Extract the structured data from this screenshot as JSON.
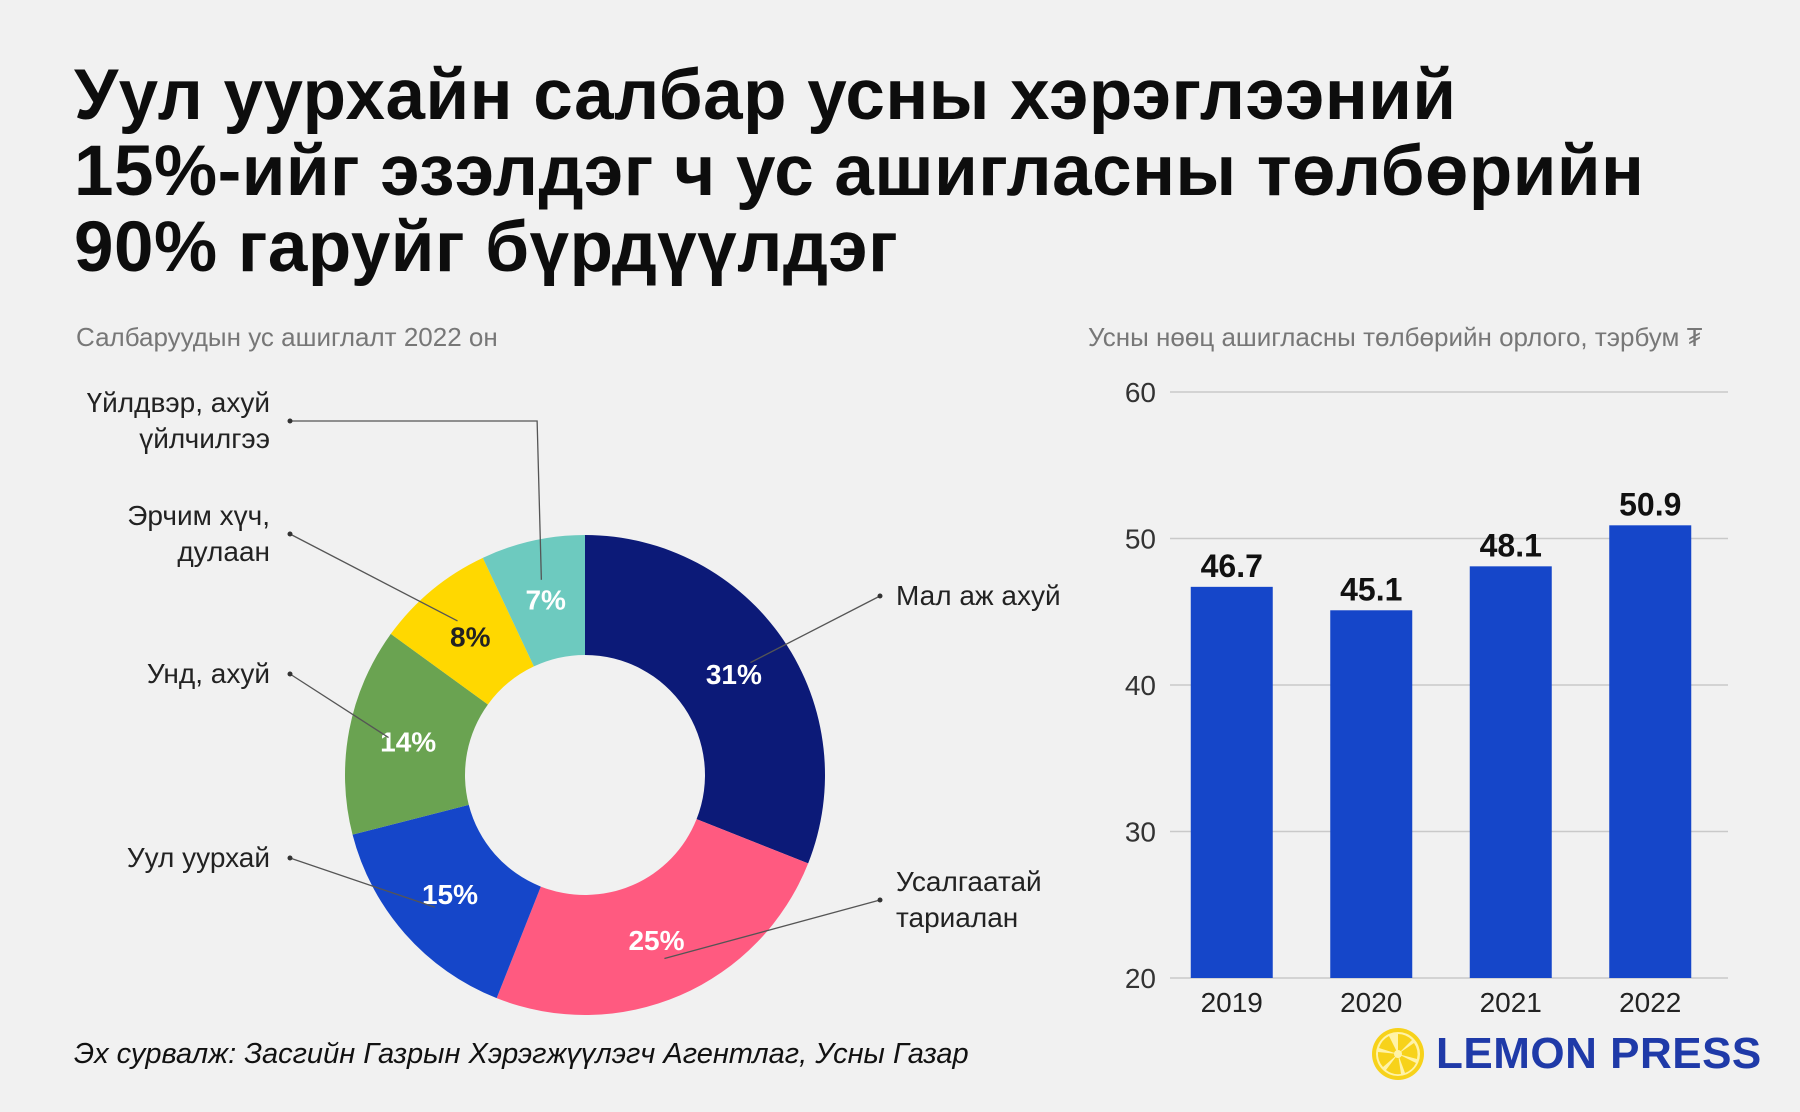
{
  "title_lines": [
    "Уул уурхайн салбар усны хэрэглээний",
    "15%-ийг эзэлдэг ч ус ашигласны төлбөрийн",
    "90% гаруйг бүрдүүлдэг"
  ],
  "source": "Эх сурвалж: Засгийн Газрын Хэрэгжүүлэгч Агентлаг, Усны Газар",
  "brand": {
    "name": "LEMON PRESS",
    "logo_icon": "lemon-slice-icon",
    "logo_color": "#f7d21a",
    "text_color": "#1f3aa8"
  },
  "chart_data": [
    {
      "type": "pie",
      "donut": true,
      "title": "Салбаруудын ус ашиглалт 2022 он",
      "slices": [
        {
          "label": "Мал аж ахуй",
          "label_lines": [
            "Мал аж ахуй"
          ],
          "value": 31,
          "display": "31%",
          "color": "#0c1a78",
          "text_color": "#ffffff"
        },
        {
          "label": "Усалгаатай тариалан",
          "label_lines": [
            "Усалгаатай",
            "тариалан"
          ],
          "value": 25,
          "display": "25%",
          "color": "#ff5a80",
          "text_color": "#ffffff"
        },
        {
          "label": "Уул уурхай",
          "label_lines": [
            "Уул уурхай"
          ],
          "value": 15,
          "display": "15%",
          "color": "#1546c9",
          "text_color": "#ffffff"
        },
        {
          "label": "Унд, ахуй",
          "label_lines": [
            "Унд, ахуй"
          ],
          "value": 14,
          "display": "14%",
          "color": "#6aa351",
          "text_color": "#ffffff"
        },
        {
          "label": "Эрчим хүч, дулаан",
          "label_lines": [
            "Эрчим хүч,",
            "дулаан"
          ],
          "value": 8,
          "display": "8%",
          "color": "#ffd800",
          "text_color": "#222222"
        },
        {
          "label": "Үйлдвэр, ахуй үйлчилгээ",
          "label_lines": [
            "Үйлдвэр, ахуй",
            "үйлчилгээ"
          ],
          "value": 7,
          "display": "7%",
          "color": "#6dcabf",
          "text_color": "#ffffff"
        }
      ]
    },
    {
      "type": "bar",
      "title": "Усны нөөц ашигласны төлбөрийн орлого, тэрбум ₮",
      "categories": [
        "2019",
        "2020",
        "2021",
        "2022"
      ],
      "values": [
        46.7,
        45.1,
        48.1,
        50.9
      ],
      "value_labels": [
        "46.7",
        "45.1",
        "48.1",
        "50.9"
      ],
      "ylim": [
        20,
        60
      ],
      "yticks": [
        20,
        30,
        40,
        50,
        60
      ],
      "ytick_labels": [
        "20",
        "30",
        "40",
        "50",
        "60"
      ],
      "grid": true,
      "color": "#1546c9"
    }
  ]
}
